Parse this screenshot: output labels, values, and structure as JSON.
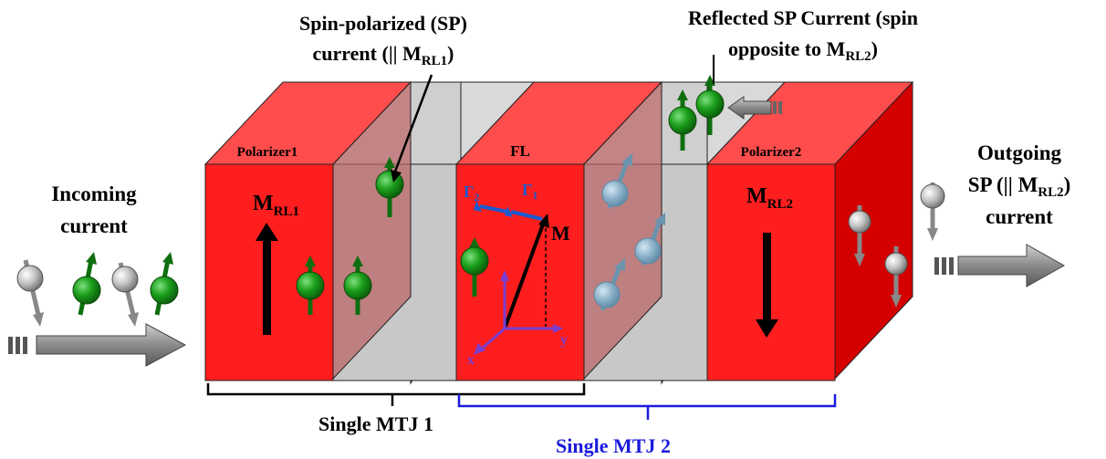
{
  "labels": {
    "sp_current_line1": "Spin-polarized (SP)",
    "sp_current_line2_pre": "current (|| M",
    "sp_current_line2_sub": "RL1",
    "sp_current_line2_post": ")",
    "reflected_line1": "Reflected  SP Current (spin",
    "reflected_line2_pre": "opposite to M",
    "reflected_line2_sub": "RL2",
    "reflected_line2_post": ")",
    "incoming_line1": "Incoming",
    "incoming_line2": "current",
    "outgoing_line1": "Outgoing",
    "outgoing_line2_pre": "SP (|| M",
    "outgoing_line2_sub": "RL2",
    "outgoing_line2_post": ")",
    "outgoing_line3": "current",
    "polarizer1": "Polarizer1",
    "polarizer2": "Polarizer2",
    "fl": "FL",
    "m_rl1_main": "M",
    "m_rl1_sub": "RL1",
    "m_rl2_main": "M",
    "m_rl2_sub": "RL2",
    "m_vector": "M",
    "gamma2_main": "Γ",
    "gamma2_sub": "2",
    "gamma1_main": "Γ",
    "gamma1_sub": "1",
    "axis_x": "x",
    "axis_y": "y",
    "mtj1": "Single MTJ 1",
    "mtj2": "Single MTJ 2"
  },
  "colors": {
    "red_face": "#ff1e1e",
    "red_top": "#ff4d4d",
    "red_side": "#d40000",
    "gray_layer": "#c8c8c8",
    "spin_green": "#1a9e1a",
    "spin_gray": "#c0c0c0",
    "spin_blue": "#8fb4cc",
    "mtj2_blue": "#1a1adc",
    "axis_purple": "#7a3fd0",
    "gamma_blue": "#1a5ad0"
  }
}
